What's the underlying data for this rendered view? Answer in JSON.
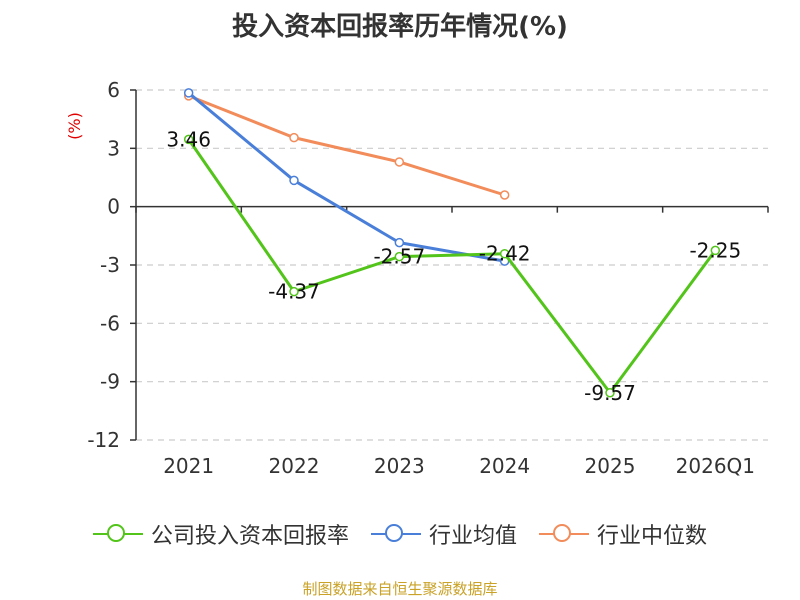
{
  "chart_data": {
    "type": "line",
    "title": "投入资本回报率历年情况(%)",
    "ylabel": "(%)",
    "xlabel": "",
    "categories": [
      "2021",
      "2022",
      "2023",
      "2024",
      "2025",
      "2026Q1"
    ],
    "ylim": [
      -12,
      6
    ],
    "yticks": [
      6,
      3,
      0,
      -3,
      -6,
      -9,
      -12
    ],
    "grid": true,
    "legend_position": "bottom",
    "series": [
      {
        "name": "公司投入资本回报率",
        "color": "#52c41a",
        "values": [
          3.46,
          -4.37,
          -2.57,
          -2.42,
          -9.57,
          -2.25
        ],
        "labels": [
          "3.46",
          "-4.37",
          "-2.57",
          "-2.42",
          "-9.57",
          "-2.25"
        ]
      },
      {
        "name": "行业均值",
        "color": "#4a7fd9",
        "values": [
          5.85,
          1.35,
          -1.85,
          -2.8,
          null,
          null
        ]
      },
      {
        "name": "行业中位数",
        "color": "#f28c5a",
        "values": [
          5.7,
          3.55,
          2.3,
          0.6,
          null,
          null
        ]
      }
    ]
  },
  "source": "制图数据来自恒生聚源数据库"
}
